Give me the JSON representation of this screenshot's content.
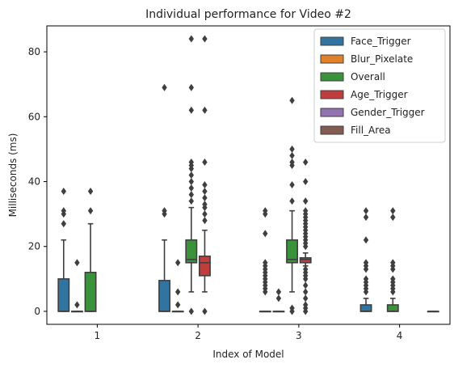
{
  "chart_data": {
    "type": "box",
    "title": "Individual performance for Video #2",
    "xlabel": "Index of Model",
    "ylabel": "Milliseconds (ms)",
    "categories": [
      "1",
      "2",
      "3",
      "4"
    ],
    "ylim": [
      -4,
      88
    ],
    "yticks": [
      0,
      20,
      40,
      60,
      80
    ],
    "grid": false,
    "legend_position": "top-right",
    "series": [
      {
        "name": "Face_Trigger",
        "color": "#3274a1",
        "boxes": [
          {
            "category": "1",
            "q1": 0,
            "median": 0,
            "q3": 10,
            "whisker_low": 0,
            "whisker_high": 22,
            "outliers": [
              27,
              30,
              31,
              37
            ]
          },
          {
            "category": "2",
            "q1": 0,
            "median": 0,
            "q3": 9.5,
            "whisker_low": 0,
            "whisker_high": 22,
            "outliers": [
              30,
              31,
              69
            ]
          },
          {
            "category": "3",
            "q1": 0,
            "median": 0,
            "q3": 0,
            "whisker_low": 0,
            "whisker_high": 0,
            "outliers": [
              6,
              7,
              8,
              9,
              10,
              11,
              12,
              13,
              14,
              15,
              24,
              30,
              31
            ]
          },
          {
            "category": "4",
            "q1": 0,
            "median": 0,
            "q3": 2,
            "whisker_low": 0,
            "whisker_high": 4,
            "outliers": [
              6,
              7,
              8,
              9,
              10,
              13,
              14,
              15,
              22,
              29,
              31
            ]
          }
        ]
      },
      {
        "name": "Blur_Pixelate",
        "color": "#e1812c",
        "boxes": [
          {
            "category": "1",
            "q1": 0,
            "median": 0,
            "q3": 0,
            "whisker_low": 0,
            "whisker_high": 0,
            "outliers": [
              2,
              15
            ]
          },
          {
            "category": "2",
            "q1": 0,
            "median": 0,
            "q3": 0,
            "whisker_low": 0,
            "whisker_high": 0,
            "outliers": [
              2,
              6,
              15
            ]
          },
          {
            "category": "3",
            "q1": 0,
            "median": 0,
            "q3": 0,
            "whisker_low": 0,
            "whisker_high": 0,
            "outliers": [
              4,
              6
            ]
          }
        ]
      },
      {
        "name": "Overall",
        "color": "#3a923a",
        "boxes": [
          {
            "category": "1",
            "q1": 0,
            "median": 0,
            "q3": 12,
            "whisker_low": 0,
            "whisker_high": 27,
            "outliers": [
              31,
              37
            ]
          },
          {
            "category": "2",
            "q1": 15,
            "median": 16,
            "q3": 22,
            "whisker_low": 6,
            "whisker_high": 32,
            "outliers": [
              0,
              34,
              36,
              38,
              40,
              42,
              44,
              45,
              46,
              62,
              69,
              84
            ]
          },
          {
            "category": "3",
            "q1": 15,
            "median": 16,
            "q3": 22,
            "whisker_low": 6,
            "whisker_high": 31,
            "outliers": [
              0,
              1,
              34,
              39,
              45,
              46,
              48,
              50,
              65
            ]
          },
          {
            "category": "4",
            "q1": 0,
            "median": 0,
            "q3": 2,
            "whisker_low": 0,
            "whisker_high": 4,
            "outliers": [
              6,
              7,
              8,
              9,
              10,
              13,
              14,
              15,
              29,
              31
            ]
          }
        ]
      },
      {
        "name": "Age_Trigger",
        "color": "#c03d3e",
        "boxes": [
          {
            "category": "2",
            "q1": 11,
            "median": 15,
            "q3": 17,
            "whisker_low": 6,
            "whisker_high": 25,
            "outliers": [
              0,
              28,
              30,
              32,
              33,
              35,
              37,
              39,
              46,
              62,
              84
            ]
          },
          {
            "category": "3",
            "q1": 15,
            "median": 16,
            "q3": 16.5,
            "whisker_low": 14,
            "whisker_high": 18,
            "outliers": [
              0,
              1,
              2,
              4,
              6,
              8,
              10,
              11,
              12,
              13,
              20,
              21,
              22,
              23,
              24,
              25,
              26,
              27,
              28,
              29,
              30,
              31,
              34,
              40,
              46
            ]
          }
        ]
      },
      {
        "name": "Gender_Trigger",
        "color": "#9372b2",
        "boxes": []
      },
      {
        "name": "Fill_Area",
        "color": "#845b53",
        "boxes": [
          {
            "category": "4",
            "q1": 0,
            "median": 0,
            "q3": 0,
            "whisker_low": 0,
            "whisker_high": 0,
            "outliers": []
          }
        ]
      }
    ]
  }
}
